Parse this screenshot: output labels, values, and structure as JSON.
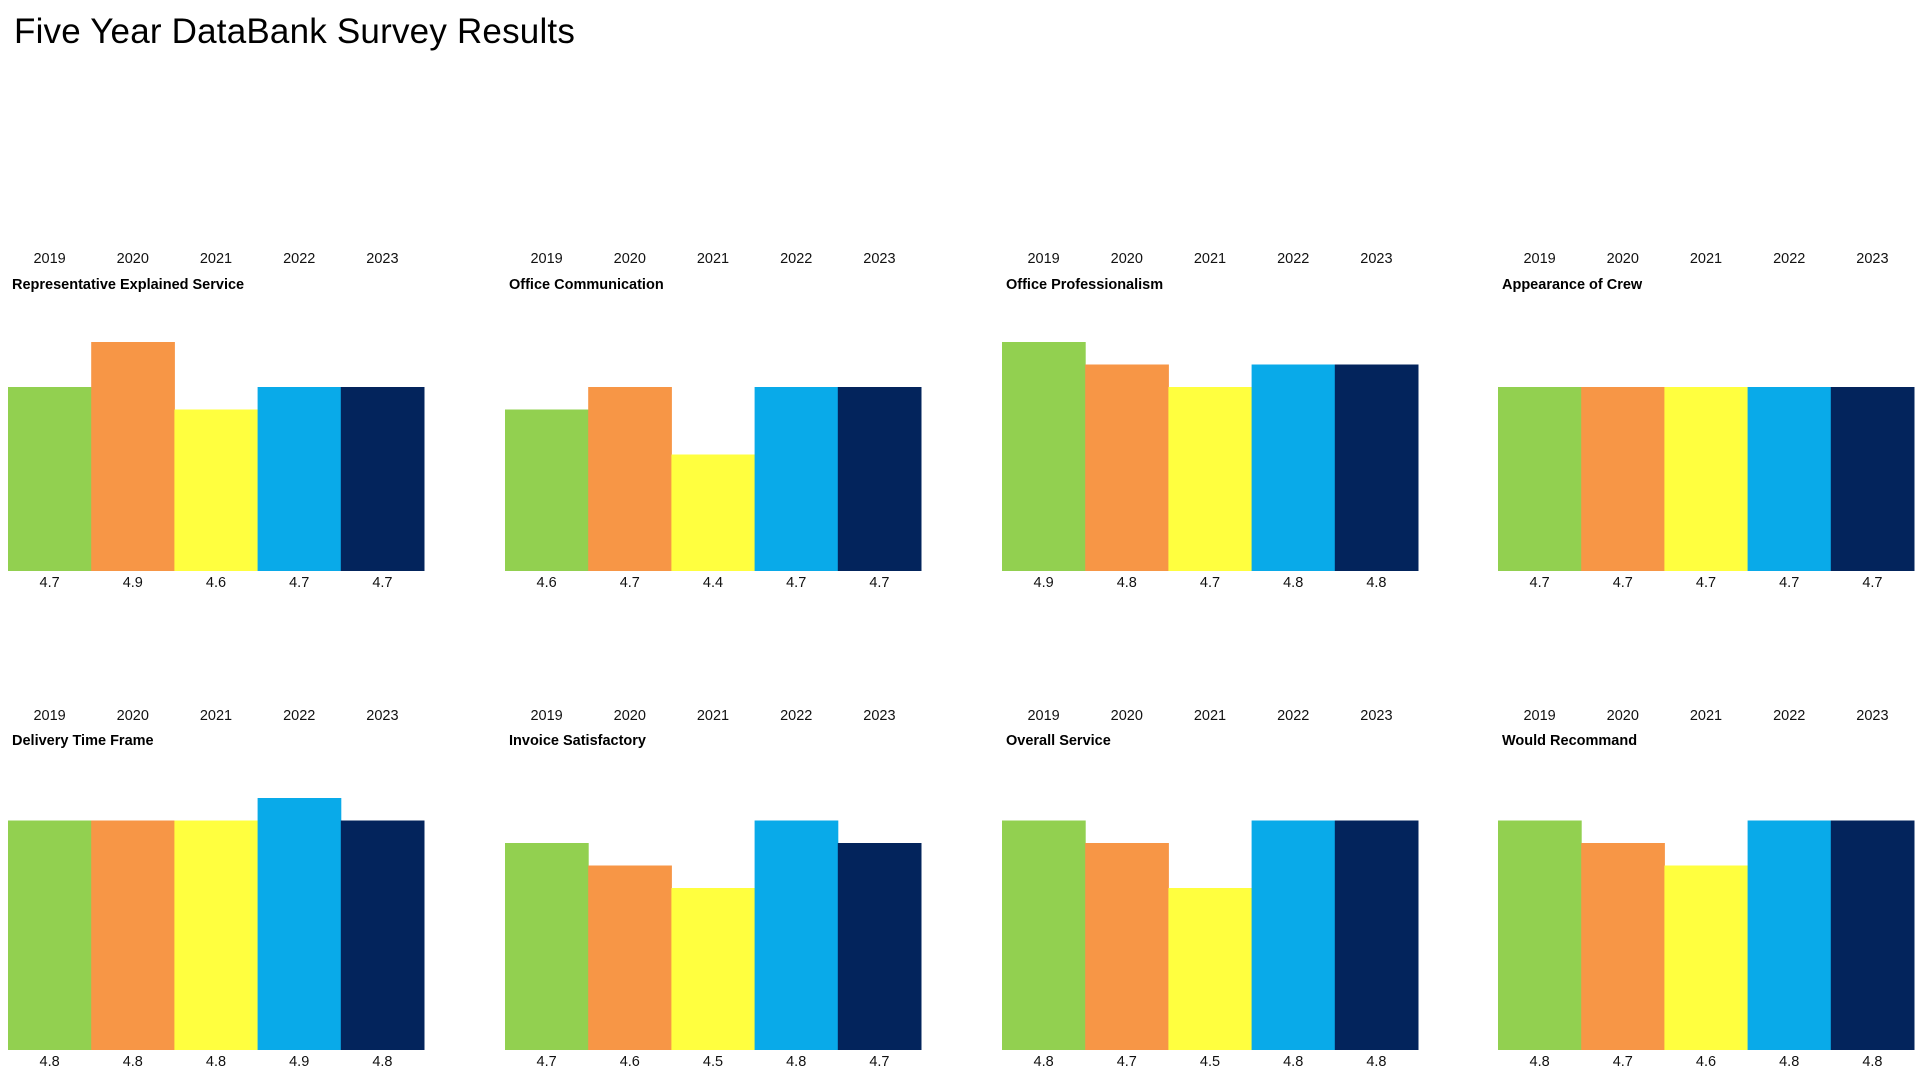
{
  "page": {
    "title": "Five Year DataBank Survey Results"
  },
  "colors": {
    "2019": "#92d050",
    "2020": "#f79646",
    "2021": "#ffff3f",
    "2022": "#09aae9",
    "2023": "#03245c"
  },
  "chart_data": [
    {
      "type": "bar",
      "title": "Representative Explained Service",
      "categories": [
        "2019",
        "2020",
        "2021",
        "2022",
        "2023"
      ],
      "values": [
        4.7,
        4.9,
        4.6,
        4.7,
        4.7
      ],
      "xlabel": "",
      "ylabel": "",
      "grid": false,
      "legend": "none"
    },
    {
      "type": "bar",
      "title": "Office Communication",
      "categories": [
        "2019",
        "2020",
        "2021",
        "2022",
        "2023"
      ],
      "values": [
        4.6,
        4.7,
        4.4,
        4.7,
        4.7
      ],
      "xlabel": "",
      "ylabel": "",
      "grid": false,
      "legend": "none"
    },
    {
      "type": "bar",
      "title": "Office Professionalism",
      "categories": [
        "2019",
        "2020",
        "2021",
        "2022",
        "2023"
      ],
      "values": [
        4.9,
        4.8,
        4.7,
        4.8,
        4.8
      ],
      "xlabel": "",
      "ylabel": "",
      "grid": false,
      "legend": "none"
    },
    {
      "type": "bar",
      "title": "Appearance of Crew",
      "categories": [
        "2019",
        "2020",
        "2021",
        "2022",
        "2023"
      ],
      "values": [
        4.7,
        4.7,
        4.7,
        4.7,
        4.7
      ],
      "xlabel": "",
      "ylabel": "",
      "grid": false,
      "legend": "none"
    },
    {
      "type": "bar",
      "title": "Delivery Time Frame",
      "categories": [
        "2019",
        "2020",
        "2021",
        "2022",
        "2023"
      ],
      "values": [
        4.8,
        4.8,
        4.8,
        4.9,
        4.8
      ],
      "xlabel": "",
      "ylabel": "",
      "grid": false,
      "legend": "none"
    },
    {
      "type": "bar",
      "title": "Invoice Satisfactory",
      "categories": [
        "2019",
        "2020",
        "2021",
        "2022",
        "2023"
      ],
      "values": [
        4.7,
        4.6,
        4.5,
        4.8,
        4.7
      ],
      "xlabel": "",
      "ylabel": "",
      "grid": false,
      "legend": "none"
    },
    {
      "type": "bar",
      "title": "Overall Service",
      "categories": [
        "2019",
        "2020",
        "2021",
        "2022",
        "2023"
      ],
      "values": [
        4.8,
        4.7,
        4.5,
        4.8,
        4.8
      ],
      "xlabel": "",
      "ylabel": "",
      "grid": false,
      "legend": "none"
    },
    {
      "type": "bar",
      "title": "Would Recommand",
      "categories": [
        "2019",
        "2020",
        "2021",
        "2022",
        "2023"
      ],
      "values": [
        4.8,
        4.7,
        4.6,
        4.8,
        4.8
      ],
      "xlabel": "",
      "ylabel": "",
      "grid": false,
      "legend": "none"
    }
  ]
}
